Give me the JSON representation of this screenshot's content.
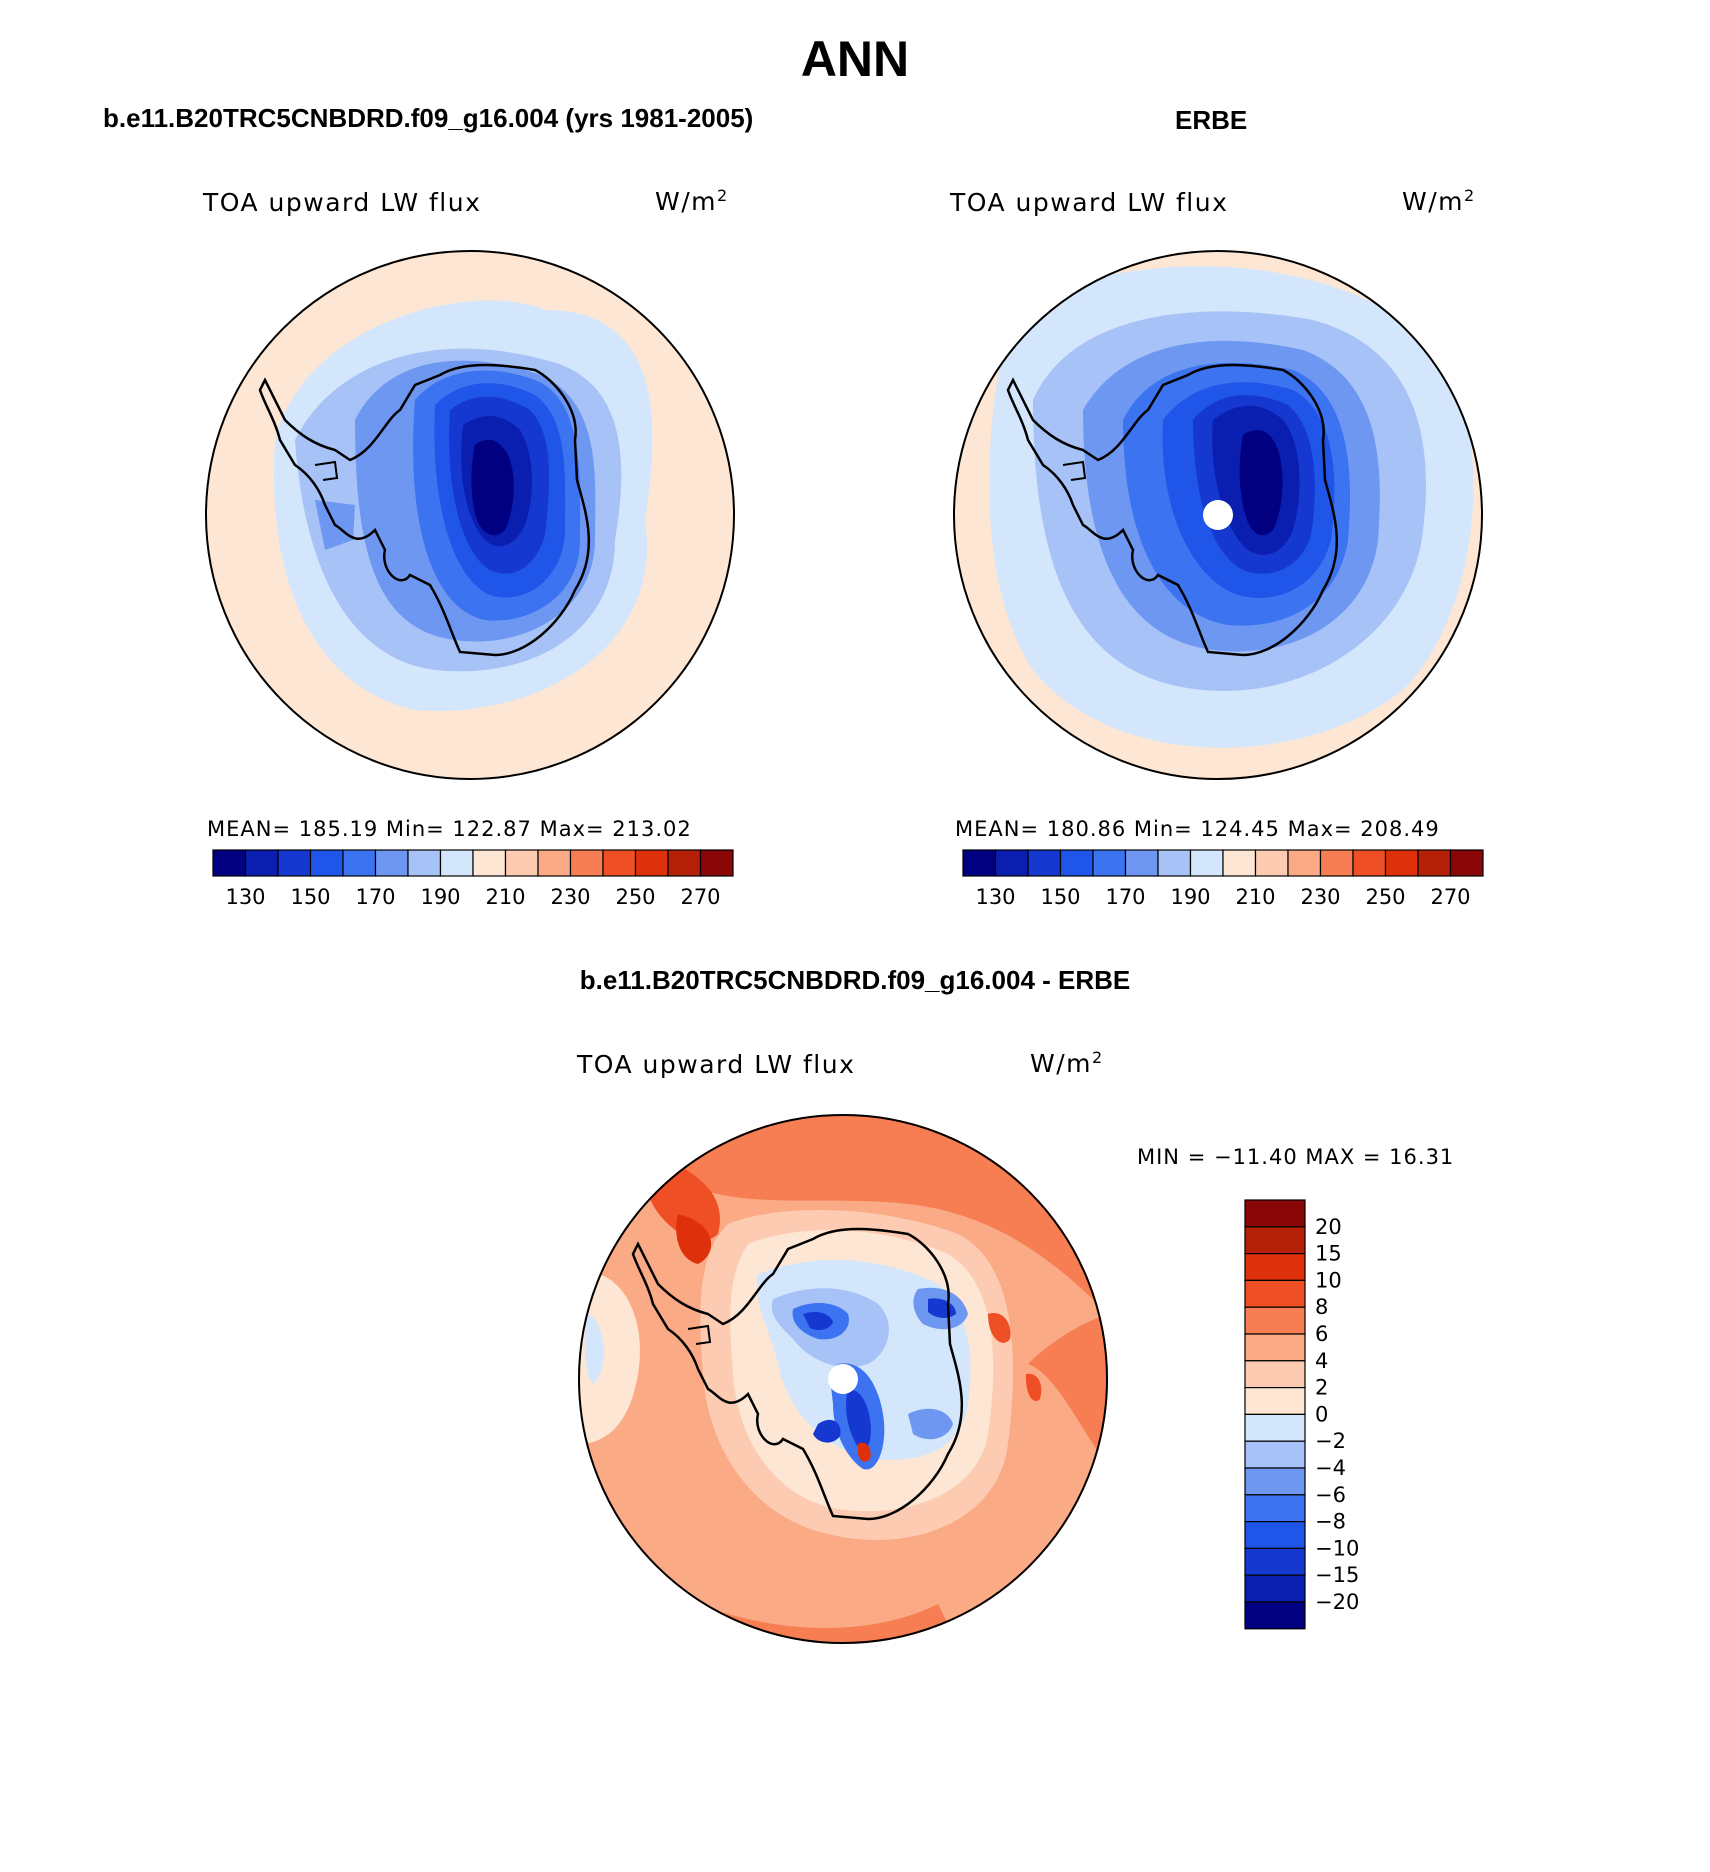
{
  "title": "ANN",
  "panels": [
    {
      "heading": "b.e11.B20TRC5CNBDRD.f09_g16.004 (yrs 1981-2005)",
      "left_label": "TOA upward LW flux",
      "unit_base": "W/m",
      "unit_exp": "2",
      "stats": "MEAN= 185.19   Min= 122.87   Max= 213.02"
    },
    {
      "heading": "ERBE",
      "left_label": "TOA upward LW flux",
      "unit_base": "W/m",
      "unit_exp": "2",
      "stats": "MEAN= 180.86   Min= 124.45   Max= 208.49"
    },
    {
      "heading": "b.e11.B20TRC5CNBDRD.f09_g16.004 - ERBE",
      "left_label": "TOA upward LW flux",
      "unit_base": "W/m",
      "unit_exp": "2",
      "stats": "MIN = −11.40 MAX =   16.31"
    }
  ],
  "chart_data": [
    {
      "type": "heatmap",
      "projection": "south-polar-stereographic",
      "title": "b.e11.B20TRC5CNBDRD.f09_g16.004 (yrs 1981-2005)",
      "variable": "TOA upward LW flux",
      "units": "W/m2",
      "mean": 185.19,
      "min": 122.87,
      "max": 213.02,
      "levels": [
        130,
        140,
        150,
        160,
        170,
        180,
        190,
        200,
        210,
        220,
        230,
        240,
        250,
        260,
        270
      ],
      "tick_labels": [
        "130",
        "150",
        "170",
        "190",
        "210",
        "230",
        "250",
        "270"
      ],
      "colors": [
        "#000080",
        "#0a1fb0",
        "#1438d0",
        "#1f55e8",
        "#3b73f0",
        "#6e97f2",
        "#a6c2f7",
        "#d4e6fb",
        "#fde6d3",
        "#fccbb1",
        "#fbaa86",
        "#f77d52",
        "#ee4f24",
        "#dd300b",
        "#b52108",
        "#8a0707"
      ]
    },
    {
      "type": "heatmap",
      "projection": "south-polar-stereographic",
      "title": "ERBE",
      "variable": "TOA upward LW flux",
      "units": "W/m2",
      "mean": 180.86,
      "min": 124.45,
      "max": 208.49,
      "levels": [
        130,
        140,
        150,
        160,
        170,
        180,
        190,
        200,
        210,
        220,
        230,
        240,
        250,
        260,
        270
      ],
      "tick_labels": [
        "130",
        "150",
        "170",
        "190",
        "210",
        "230",
        "250",
        "270"
      ],
      "colors": [
        "#000080",
        "#0a1fb0",
        "#1438d0",
        "#1f55e8",
        "#3b73f0",
        "#6e97f2",
        "#a6c2f7",
        "#d4e6fb",
        "#fde6d3",
        "#fccbb1",
        "#fbaa86",
        "#f77d52",
        "#ee4f24",
        "#dd300b",
        "#b52108",
        "#8a0707"
      ]
    },
    {
      "type": "heatmap",
      "projection": "south-polar-stereographic",
      "title": "b.e11.B20TRC5CNBDRD.f09_g16.004 - ERBE",
      "variable": "TOA upward LW flux",
      "units": "W/m2",
      "min": -11.4,
      "max": 16.31,
      "levels": [
        -20,
        -15,
        -10,
        -8,
        -6,
        -4,
        -2,
        0,
        2,
        4,
        6,
        8,
        10,
        15,
        20
      ],
      "tick_labels": [
        "20",
        "15",
        "10",
        "8",
        "6",
        "4",
        "2",
        "0",
        "−2",
        "−4",
        "−6",
        "−8",
        "−10",
        "−15",
        "−20"
      ],
      "colors": [
        "#000080",
        "#0a1fb0",
        "#1438d0",
        "#1f55e8",
        "#3b73f0",
        "#6e97f2",
        "#a6c2f7",
        "#d4e6fb",
        "#fde6d3",
        "#fccbb1",
        "#fbaa86",
        "#f77d52",
        "#ee4f24",
        "#dd300b",
        "#b52108",
        "#8a0707"
      ]
    }
  ]
}
